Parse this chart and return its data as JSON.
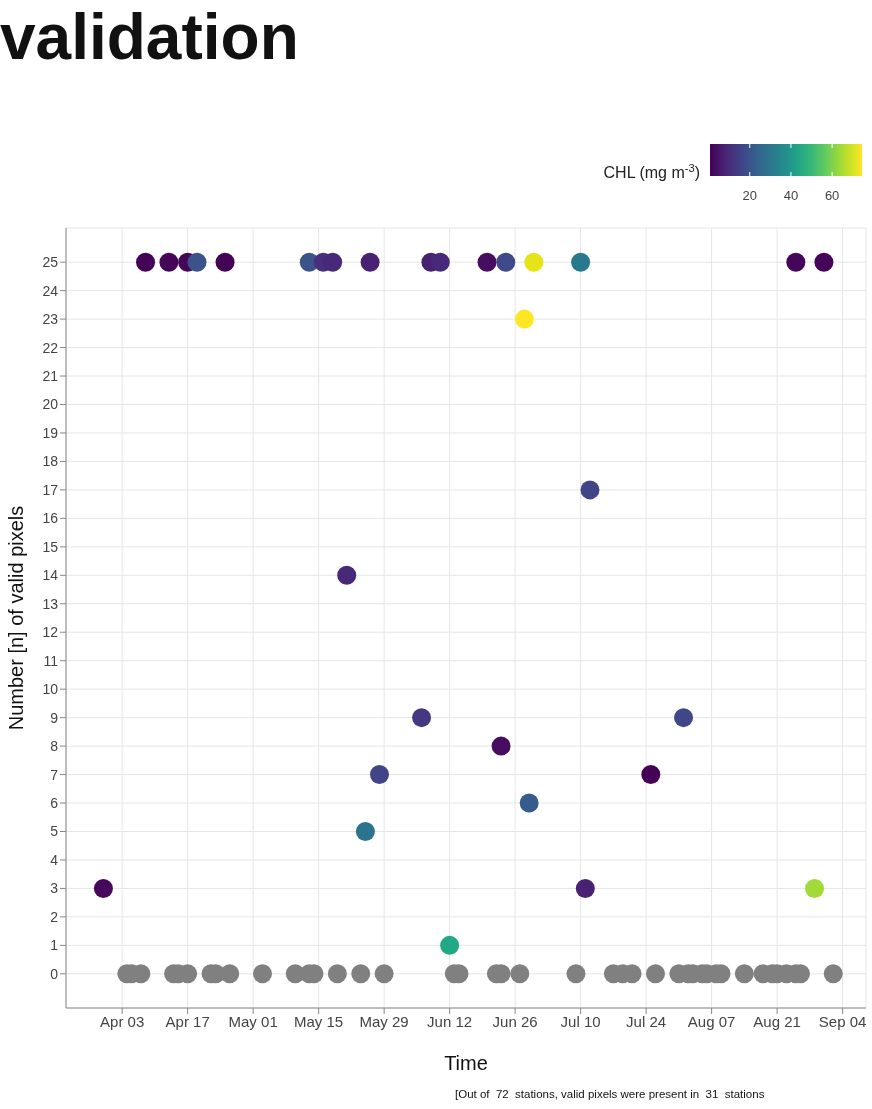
{
  "chart_data": {
    "type": "scatter",
    "title": "validation",
    "xlabel": "Time",
    "ylabel": "Number [n] of valid pixels",
    "clabel": "CHL (mg m$^{-3}$)",
    "annotations": [
      "[Out of  72  stations, valid pixels were present in  31  stations"
    ],
    "xlim": [
      "--03-22",
      "--09-09"
    ],
    "xticks": [
      {
        "value": "--04-03",
        "label": "Apr 03"
      },
      {
        "value": "--04-17",
        "label": "Apr 17"
      },
      {
        "value": "--05-01",
        "label": "May 01"
      },
      {
        "value": "--05-15",
        "label": "May 15"
      },
      {
        "value": "--05-29",
        "label": "May 29"
      },
      {
        "value": "--06-12",
        "label": "Jun 12"
      },
      {
        "value": "--06-26",
        "label": "Jun 26"
      },
      {
        "value": "--07-10",
        "label": "Jul 10"
      },
      {
        "value": "--07-24",
        "label": "Jul 24"
      },
      {
        "value": "--08-07",
        "label": "Aug 07"
      },
      {
        "value": "--08-21",
        "label": "Aug 21"
      },
      {
        "value": "--09-04",
        "label": "Sep 04"
      }
    ],
    "ylim": [
      -1.2,
      26.2
    ],
    "yticks": [
      0,
      1,
      2,
      3,
      4,
      5,
      6,
      7,
      8,
      9,
      10,
      11,
      12,
      13,
      14,
      15,
      16,
      17,
      18,
      19,
      20,
      21,
      22,
      23,
      24,
      25
    ],
    "clim": [
      0.7,
      74.5
    ],
    "cticks": [
      20,
      40,
      60
    ],
    "grid": true,
    "marker": "circle",
    "series": [
      {
        "x": [
          "--04-04",
          "--04-05",
          "--04-07",
          "--04-14",
          "--04-15",
          "--04-17",
          "--04-22",
          "--04-23",
          "--04-26",
          "--05-03",
          "--05-10",
          "--05-13",
          "--05-14",
          "--05-19",
          "--05-24",
          "--05-29",
          "--06-13",
          "--06-14",
          "--06-22",
          "--06-23",
          "--06-27",
          "--07-09",
          "--07-17",
          "--07-19",
          "--07-21",
          "--07-26",
          "--07-31",
          "--08-02",
          "--08-03",
          "--08-05",
          "--08-06",
          "--08-08",
          "--08-09",
          "--08-14",
          "--08-18",
          "--08-20",
          "--08-21",
          "--08-23",
          "--08-25",
          "--08-26",
          "--09-02"
        ],
        "values": [
          0,
          0,
          0,
          0,
          0,
          0,
          0,
          0,
          0,
          0,
          0,
          0,
          0,
          0,
          0,
          0,
          0,
          0,
          0,
          0,
          0,
          0,
          0,
          0,
          0,
          0,
          0,
          0,
          0,
          0,
          0,
          0,
          0,
          0,
          0,
          0,
          0,
          0,
          0,
          0,
          0
        ],
        "color": "#808080"
      },
      {
        "x": [
          "--03-30",
          "--04-08",
          "--04-13",
          "--04-17",
          "--04-19",
          "--04-25",
          "--05-13",
          "--05-16",
          "--05-18",
          "--05-21",
          "--05-25",
          "--05-26",
          "--05-28",
          "--06-06",
          "--06-08",
          "--06-10",
          "--06-12",
          "--06-20",
          "--06-23",
          "--06-24",
          "--06-28",
          "--06-29",
          "--06-30",
          "--07-10",
          "--07-11",
          "--07-12",
          "--07-25",
          "--08-01",
          "--08-25",
          "--08-29",
          "--08-31"
        ],
        "values": [
          3,
          25,
          25,
          25,
          25,
          25,
          25,
          25,
          25,
          14,
          5,
          25,
          7,
          9,
          25,
          25,
          1,
          25,
          8,
          25,
          23,
          6,
          25,
          25,
          3,
          17,
          7,
          9,
          25,
          3,
          25
        ],
        "colors": [
          "#46085c",
          "#440356",
          "#45065a",
          "#45065a",
          "#3b528b",
          "#440356",
          "#3b528b",
          "#472f7d",
          "#482878",
          "#482878",
          "#2c738e",
          "#482173",
          "#414487",
          "#453781",
          "#482173",
          "#482878",
          "#22a884",
          "#470d60",
          "#470d60",
          "#3e4a89",
          "#fde725",
          "#375b8d",
          "#e5e419",
          "#29798e",
          "#482173",
          "#414487",
          "#440356",
          "#3f4788",
          "#45065a",
          "#a2da37",
          "#45065a"
        ]
      }
    ]
  }
}
